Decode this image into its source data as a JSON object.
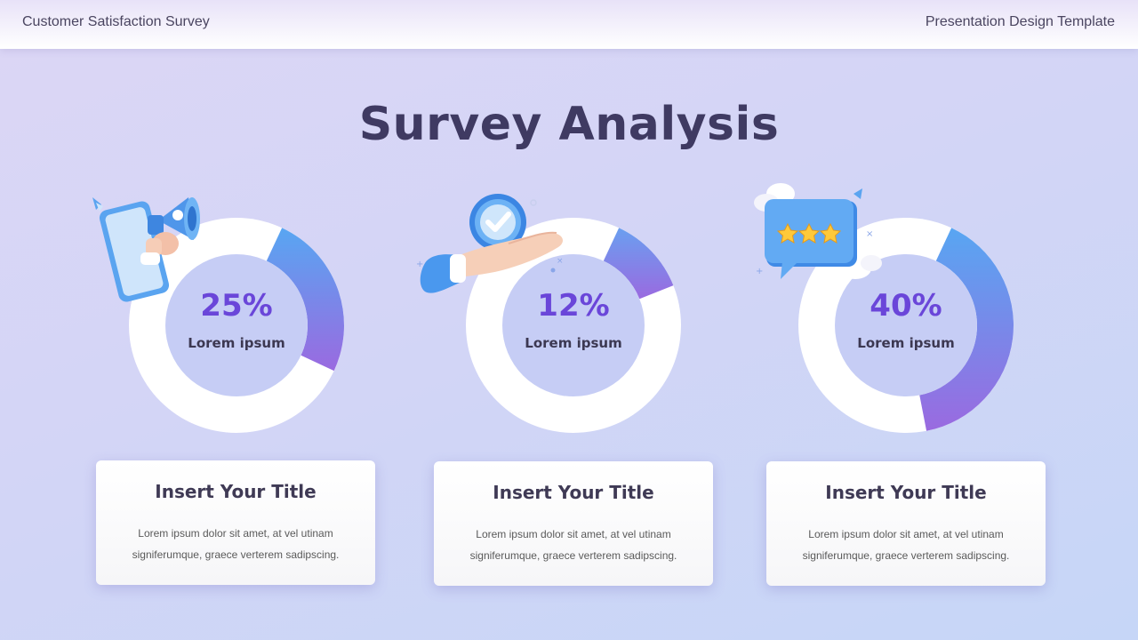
{
  "header": {
    "left": "Customer Satisfaction Survey",
    "right": "Presentation Design Template"
  },
  "title": "Survey Analysis",
  "colors": {
    "accent_start": "#5aa4f0",
    "accent_end": "#9a6ae0",
    "percent_text": "#6a46d9",
    "title_text": "#3f3a62"
  },
  "chart_data": [
    {
      "type": "pie",
      "label": "25%",
      "sublabel": "Lorem ipsum",
      "value": 25
    },
    {
      "type": "pie",
      "label": "12%",
      "sublabel": "Lorem ipsum",
      "value": 12
    },
    {
      "type": "pie",
      "label": "40%",
      "sublabel": "Lorem ipsum",
      "value": 40
    }
  ],
  "cards": [
    {
      "title": "Insert Your Title",
      "line1": "Lorem  ipsum dolor sit amet, at vel utinam",
      "line2": "signiferumque, graece verterem  sadipscing.",
      "icon": "megaphone-phone-icon"
    },
    {
      "title": "Insert Your Title",
      "line1": "Lorem  ipsum dolor sit amet, at vel utinam",
      "line2": "signiferumque, graece verterem  sadipscing.",
      "icon": "hand-checkmark-icon"
    },
    {
      "title": "Insert Your Title",
      "line1": "Lorem  ipsum dolor sit amet, at vel utinam",
      "line2": "signiferumque, graece verterem  sadipscing.",
      "icon": "rating-stars-bubble-icon"
    }
  ]
}
